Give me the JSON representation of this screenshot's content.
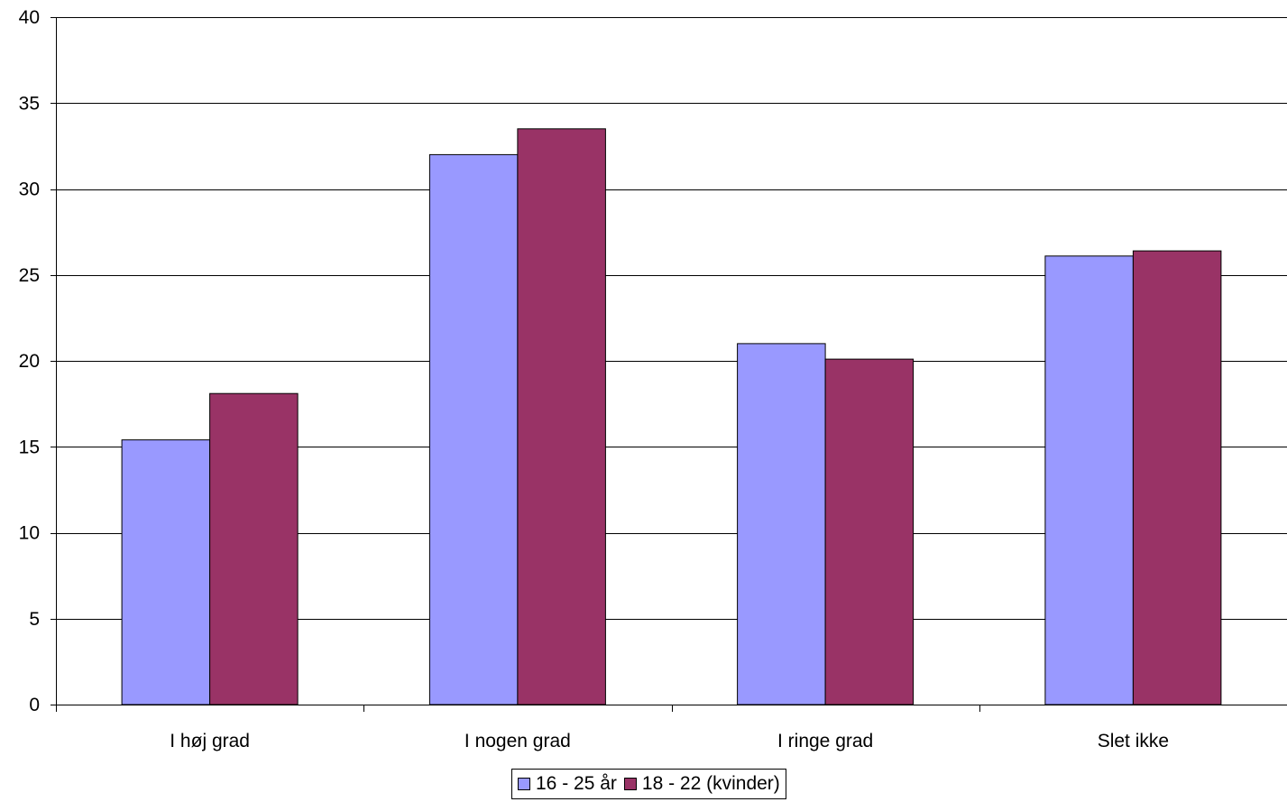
{
  "chart_data": {
    "type": "bar",
    "categories": [
      "I høj grad",
      "I nogen grad",
      "I ringe grad",
      "Slet ikke"
    ],
    "series": [
      {
        "name": "16 - 25 år",
        "values": [
          15.4,
          32.0,
          21.0,
          26.1
        ],
        "color": "#9999ff"
      },
      {
        "name": "18 - 22 (kvinder)",
        "values": [
          18.1,
          33.5,
          20.1,
          26.4
        ],
        "color": "#993366"
      }
    ],
    "title": "",
    "xlabel": "",
    "ylabel": "",
    "ylim": [
      0,
      40
    ],
    "yticks": [
      "0",
      "5",
      "10",
      "15",
      "20",
      "25",
      "30",
      "35",
      "40"
    ],
    "grid": true,
    "legend_position": "bottom-center"
  }
}
